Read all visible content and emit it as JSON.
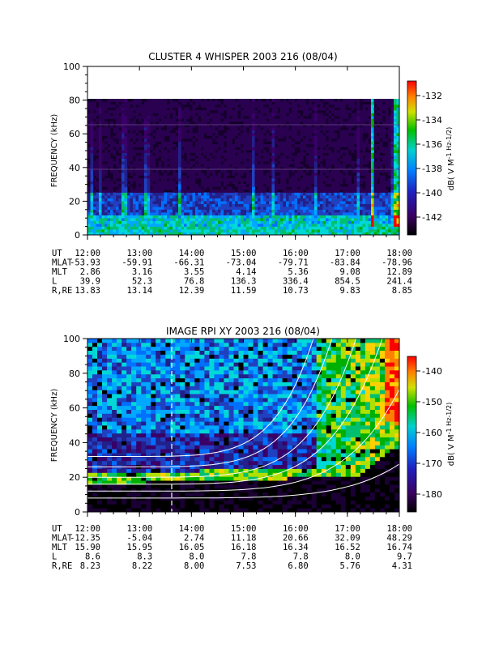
{
  "panels": [
    {
      "title": "CLUSTER 4 WHISPER 2003 216 (08/04)",
      "ylabel": "FREQUENCY (kHz)",
      "yticks": [
        "0",
        "20",
        "40",
        "60",
        "80",
        "100"
      ],
      "colorbar_label": "dB( V M",
      "colorbar_unit": "-1 Hz-1/2)",
      "colorbar_ticks": [
        "-132",
        "-134",
        "-136",
        "-138",
        "-140",
        "-142"
      ],
      "row_labels": [
        "UT",
        "MLAT",
        "MLT",
        "L",
        "R,RE"
      ],
      "rows": [
        [
          "12:00",
          "13:00",
          "14:00",
          "15:00",
          "16:00",
          "17:00",
          "18:00"
        ],
        [
          "-53.93",
          "-59.91",
          "-66.31",
          "-73.04",
          "-79.71",
          "-83.84",
          "-78.96"
        ],
        [
          "2.86",
          "3.16",
          "3.55",
          "4.14",
          "5.36",
          "9.08",
          "12.89"
        ],
        [
          "39.9",
          "52.3",
          "76.8",
          "136.3",
          "336.4",
          "854.5",
          "241.4"
        ],
        [
          "13.83",
          "13.14",
          "12.39",
          "11.59",
          "10.73",
          "9.83",
          "8.85"
        ]
      ]
    },
    {
      "title": "IMAGE RPI XY 2003 216 (08/04)",
      "ylabel": "FREQUENCY (kHz)",
      "yticks": [
        "0",
        "20",
        "40",
        "60",
        "80",
        "100"
      ],
      "colorbar_label": "dB( V M",
      "colorbar_unit": "-1 Hz-1/2)",
      "colorbar_ticks": [
        "-140",
        "-150",
        "-160",
        "-170",
        "-180"
      ],
      "row_labels": [
        "UT",
        "MLAT",
        "MLT",
        "L",
        "R,RE"
      ],
      "rows": [
        [
          "12:00",
          "13:00",
          "14:00",
          "15:00",
          "16:00",
          "17:00",
          "18:00"
        ],
        [
          "-12.35",
          "-5.04",
          "2.74",
          "11.18",
          "20.66",
          "32.09",
          "48.29"
        ],
        [
          "15.90",
          "15.95",
          "16.05",
          "16.18",
          "16.34",
          "16.52",
          "16.74"
        ],
        [
          "8.6",
          "8.3",
          "8.0",
          "7.8",
          "7.8",
          "8.0",
          "9.7"
        ],
        [
          "8.23",
          "8.22",
          "8.00",
          "7.53",
          "6.80",
          "5.76",
          "4.31"
        ]
      ]
    }
  ],
  "chart_data": [
    {
      "type": "heatmap",
      "title": "CLUSTER 4 WHISPER 2003 216 (08/04)",
      "ylabel": "FREQUENCY (kHz)",
      "x": [
        "12:00",
        "13:00",
        "14:00",
        "15:00",
        "16:00",
        "17:00",
        "18:00"
      ],
      "ylim": [
        0,
        100
      ],
      "data_extent_khz": [
        0,
        80
      ],
      "colorbar_range_db": [
        -143,
        -131
      ],
      "colormap": "rainbow (black-purple-blue-cyan-green-yellow-red)"
    },
    {
      "type": "heatmap",
      "title": "IMAGE RPI XY 2003 216 (08/04)",
      "ylabel": "FREQUENCY (kHz)",
      "x": [
        "12:00",
        "13:00",
        "14:00",
        "15:00",
        "16:00",
        "17:00",
        "18:00"
      ],
      "ylim": [
        0,
        100
      ],
      "colorbar_range_db": [
        -185,
        -135
      ],
      "colormap": "rainbow (black-purple-blue-cyan-green-yellow-red)",
      "overlay_curves": "white resonance curves rising toward 18:00",
      "dashed_marker_time": "13:45"
    }
  ]
}
